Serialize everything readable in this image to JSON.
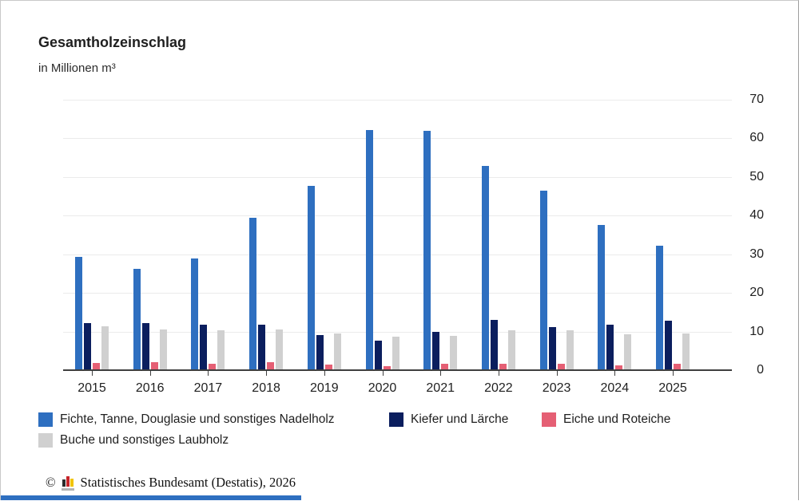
{
  "title": "Gesamtholzeinschlag",
  "subtitle": "in Millionen m³",
  "chart_data": {
    "type": "bar",
    "title": "Gesamtholzeinschlag",
    "subtitle": "in Millionen m³",
    "categories": [
      "2015",
      "2016",
      "2017",
      "2018",
      "2019",
      "2020",
      "2021",
      "2022",
      "2023",
      "2024",
      "2025"
    ],
    "series": [
      {
        "name": "Fichte, Tanne, Douglasie und sonstiges Nadelholz",
        "color": "#2e6fc0",
        "values": [
          29.3,
          26.3,
          28.9,
          39.4,
          47.8,
          62.2,
          62.0,
          52.8,
          46.4,
          37.6,
          32.3
        ]
      },
      {
        "name": "Kiefer und Lärche",
        "color": "#0b1e5e",
        "values": [
          12.2,
          12.2,
          11.8,
          11.8,
          9.1,
          7.7,
          10.0,
          13.1,
          11.2,
          11.7,
          12.7
        ]
      },
      {
        "name": "Eiche und Roteiche",
        "color": "#e55f74",
        "values": [
          1.9,
          2.0,
          1.7,
          2.1,
          1.5,
          1.1,
          1.6,
          1.7,
          1.7,
          1.2,
          1.6
        ]
      },
      {
        "name": "Buche und sonstiges Laubholz",
        "color": "#d0d0d0",
        "values": [
          11.3,
          10.6,
          10.3,
          10.6,
          9.6,
          8.6,
          8.8,
          10.4,
          10.4,
          9.3,
          9.5
        ]
      }
    ],
    "ylim": [
      0,
      70
    ],
    "yticks": [
      0,
      10,
      20,
      30,
      40,
      50,
      60,
      70
    ],
    "grid": true,
    "legend_position": "bottom"
  },
  "footer": {
    "copyright_symbol": "©",
    "text": "Statistisches Bundesamt (Destatis), 2026"
  }
}
